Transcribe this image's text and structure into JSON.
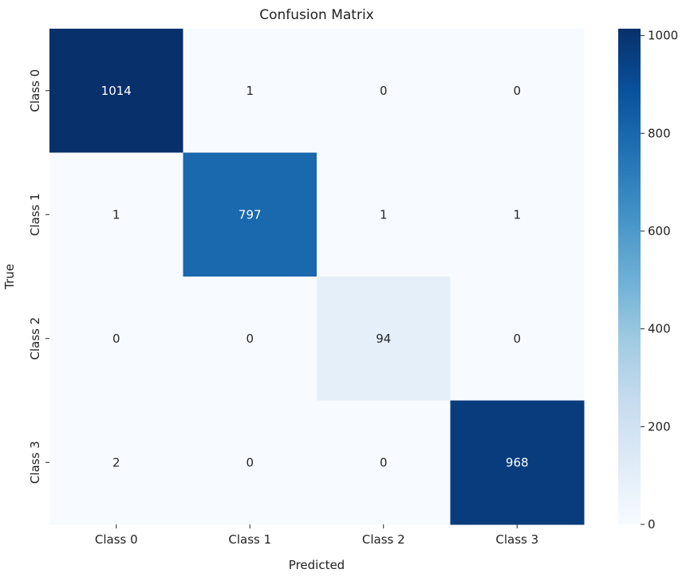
{
  "chart_data": {
    "type": "heatmap",
    "title": "Confusion Matrix",
    "xlabel": "Predicted",
    "ylabel": "True",
    "x_categories": [
      "Class 0",
      "Class 1",
      "Class 2",
      "Class 3"
    ],
    "y_categories": [
      "Class 0",
      "Class 1",
      "Class 2",
      "Class 3"
    ],
    "values": [
      [
        1014,
        1,
        0,
        0
      ],
      [
        1,
        797,
        1,
        1
      ],
      [
        0,
        0,
        94,
        0
      ],
      [
        2,
        0,
        0,
        968
      ]
    ],
    "colormap": "Blues",
    "colorbar": {
      "range": [
        0,
        1014
      ],
      "ticks": [
        0,
        200,
        400,
        600,
        800,
        1000
      ]
    },
    "grid": false,
    "annotations": true
  }
}
